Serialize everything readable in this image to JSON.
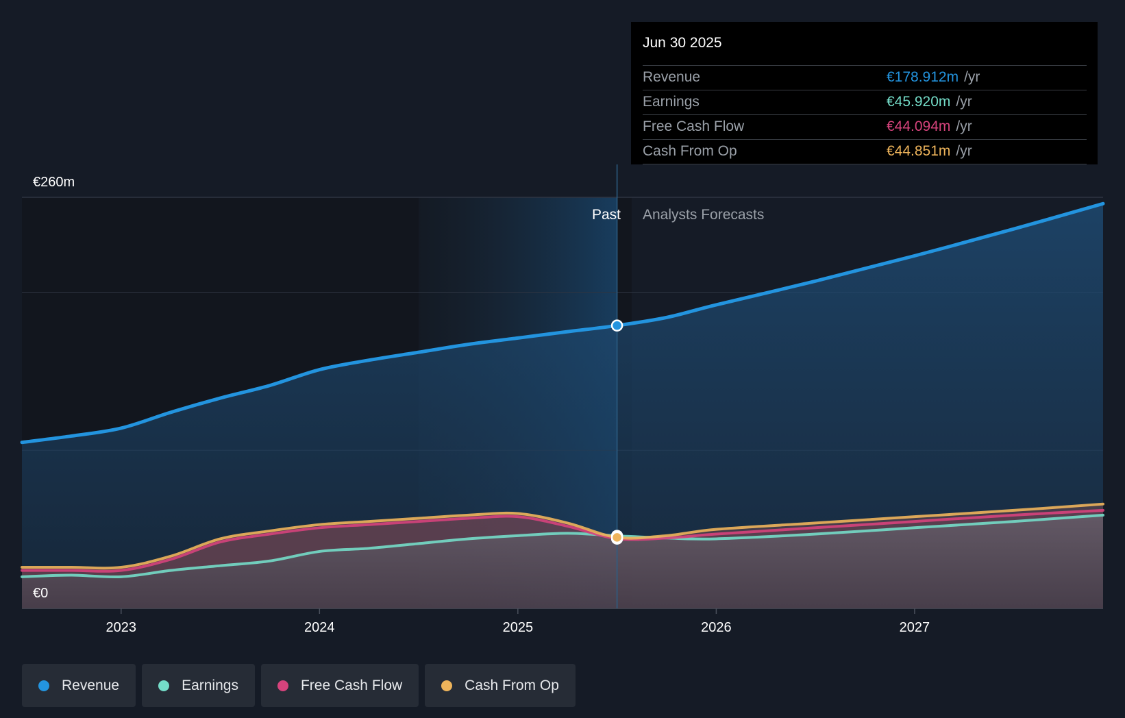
{
  "colors": {
    "revenue": "#2394df",
    "earnings": "#74dcc8",
    "free_cash_flow": "#d6437c",
    "cash_from_op": "#eeb45b",
    "grid": "#3a4150",
    "text": "#ffffff",
    "muted": "#9aa0a8"
  },
  "tooltip": {
    "date": "Jun 30 2025",
    "rows": [
      {
        "label": "Revenue",
        "value": "€178.912m",
        "unit": "/yr",
        "color": "#2394df"
      },
      {
        "label": "Earnings",
        "value": "€45.920m",
        "unit": "/yr",
        "color": "#74dcc8"
      },
      {
        "label": "Free Cash Flow",
        "value": "€44.094m",
        "unit": "/yr",
        "color": "#d6437c"
      },
      {
        "label": "Cash From Op",
        "value": "€44.851m",
        "unit": "/yr",
        "color": "#eeb45b"
      }
    ]
  },
  "legend": [
    {
      "label": "Revenue",
      "color": "#2394df"
    },
    {
      "label": "Earnings",
      "color": "#74dcc8"
    },
    {
      "label": "Free Cash Flow",
      "color": "#d6437c"
    },
    {
      "label": "Cash From Op",
      "color": "#eeb45b"
    }
  ],
  "chart_data": {
    "type": "area",
    "title": "",
    "xlabel": "",
    "ylabel": "",
    "y_top_label": "€260m",
    "y_bottom_label": "€0",
    "ylim": [
      0,
      260
    ],
    "xlim": [
      2022.5,
      2027.95
    ],
    "x_ticks": [
      2023,
      2024,
      2025,
      2026,
      2027
    ],
    "x_tick_labels": [
      "2023",
      "2024",
      "2025",
      "2026",
      "2027"
    ],
    "past_label": "Past",
    "forecast_label": "Analysts Forecasts",
    "past_shade_start": 2024.5,
    "divider_x": 2025.5,
    "series": [
      {
        "name": "Revenue",
        "color": "#2394df",
        "x": [
          2022.5,
          2022.75,
          2023.0,
          2023.25,
          2023.5,
          2023.75,
          2024.0,
          2024.25,
          2024.5,
          2024.75,
          2025.0,
          2025.25,
          2025.5,
          2025.75,
          2026.0,
          2026.5,
          2027.0,
          2027.5,
          2027.95
        ],
        "values": [
          105,
          109,
          114,
          124,
          133,
          141,
          151,
          157,
          162,
          167,
          171,
          175,
          178.9,
          184,
          192,
          207,
          223,
          240,
          256
        ]
      },
      {
        "name": "Earnings",
        "color": "#74dcc8",
        "x": [
          2022.5,
          2022.75,
          2023.0,
          2023.25,
          2023.5,
          2023.75,
          2024.0,
          2024.25,
          2024.5,
          2024.75,
          2025.0,
          2025.25,
          2025.5,
          2025.75,
          2026.0,
          2026.5,
          2027.0,
          2027.5,
          2027.95
        ],
        "values": [
          20,
          21,
          20,
          24,
          27,
          30,
          36,
          38,
          41,
          44,
          46,
          47.5,
          45.9,
          44.5,
          44,
          47,
          51,
          55,
          59
        ]
      },
      {
        "name": "Free Cash Flow",
        "color": "#d6437c",
        "x": [
          2022.5,
          2022.75,
          2023.0,
          2023.25,
          2023.5,
          2023.75,
          2024.0,
          2024.25,
          2024.5,
          2024.75,
          2025.0,
          2025.25,
          2025.5,
          2025.75,
          2026.0,
          2026.5,
          2027.0,
          2027.5,
          2027.95
        ],
        "values": [
          24,
          24,
          24,
          31,
          42,
          47,
          51,
          53,
          55,
          57,
          58,
          52,
          44.1,
          44.5,
          47,
          51,
          55,
          59,
          62
        ]
      },
      {
        "name": "Cash From Op",
        "color": "#eeb45b",
        "x": [
          2022.5,
          2022.75,
          2023.0,
          2023.25,
          2023.5,
          2023.75,
          2024.0,
          2024.25,
          2024.5,
          2024.75,
          2025.0,
          2025.25,
          2025.5,
          2025.75,
          2026.0,
          2026.5,
          2027.0,
          2027.5,
          2027.95
        ],
        "values": [
          26,
          26,
          26,
          33,
          44,
          49,
          53,
          55,
          57,
          59,
          60,
          54,
          44.9,
          46,
          50,
          54,
          58,
          62,
          66
        ]
      }
    ]
  }
}
